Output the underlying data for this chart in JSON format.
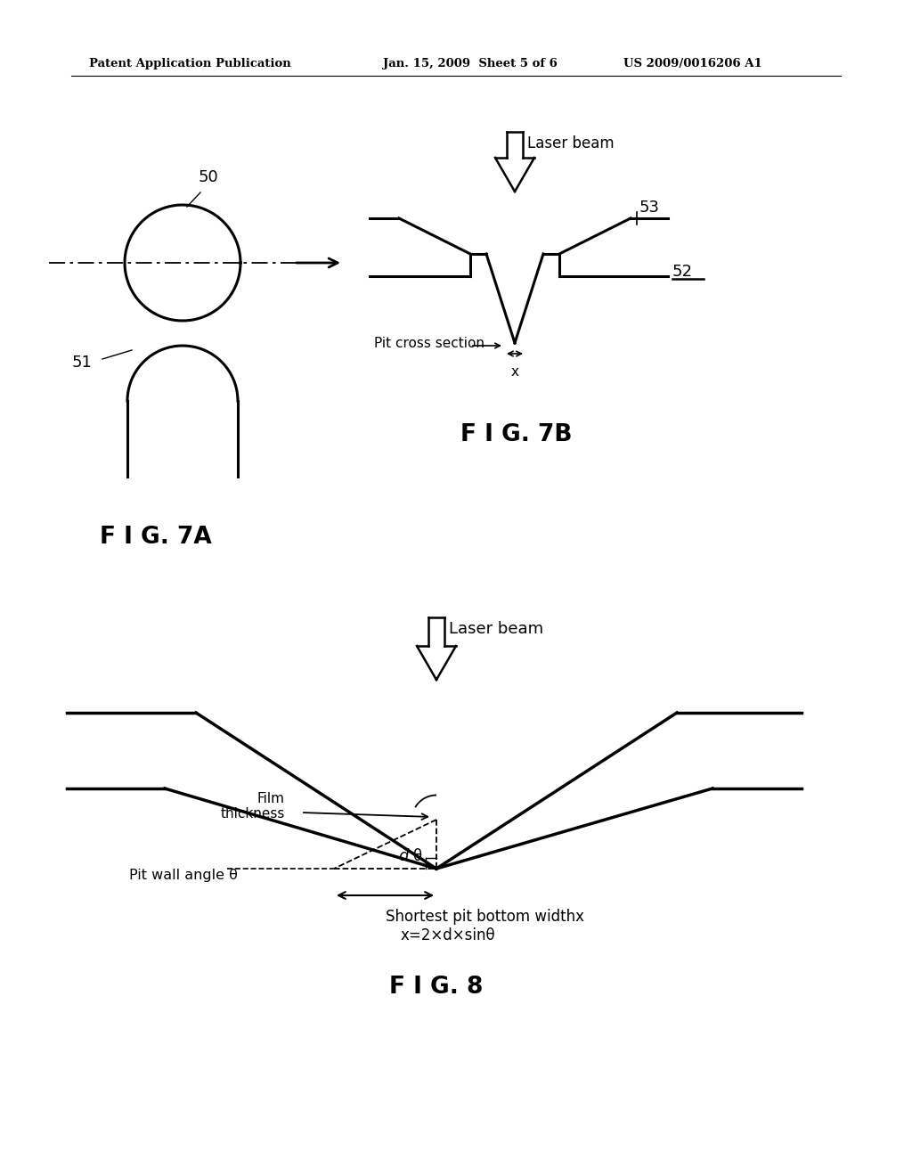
{
  "bg_color": "#ffffff",
  "line_color": "#000000",
  "header_left": "Patent Application Publication",
  "header_mid": "Jan. 15, 2009  Sheet 5 of 6",
  "header_right": "US 2009/0016206 A1",
  "fig7a_label": "F I G. 7A",
  "fig7b_label": "F I G. 7B",
  "fig8_label": "F I G. 8",
  "label_50": "50",
  "label_51": "51",
  "label_52": "52",
  "label_53": "53",
  "label_laser_beam_7b": "Laser beam",
  "label_pit_cross": "Pit cross section",
  "label_x_7b": "x",
  "label_laser_beam_8": "Laser beam",
  "label_film": "Film\nthickness",
  "label_d": "d",
  "label_theta_inner": "θ",
  "label_pit_wall": "Pit wall angle θ",
  "label_shortest": "Shortest pit bottom widthx",
  "label_formula": "x=2×d×sinθ"
}
